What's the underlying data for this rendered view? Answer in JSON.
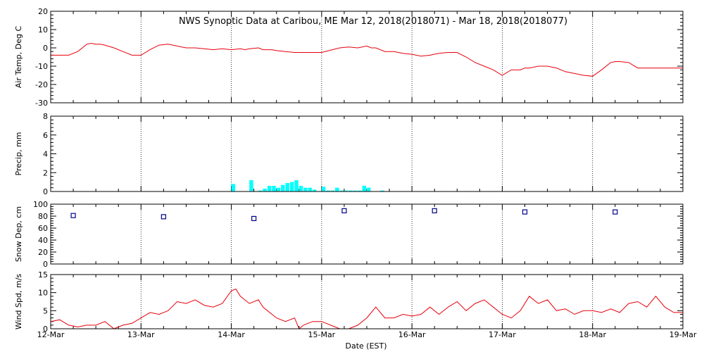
{
  "title": "NWS Synoptic Data at Caribou, ME   Mar 12, 2018(2018071) - Mar 18, 2018(2018077)",
  "xlabel": "Date (EST)",
  "x_ticks": [
    "12-Mar",
    "13-Mar",
    "14-Mar",
    "15-Mar",
    "16-Mar",
    "17-Mar",
    "18-Mar",
    "19-Mar"
  ],
  "colors": {
    "line": "#e8000b",
    "precip": "#00ffff",
    "snow": "#00008b",
    "grid": "#000000"
  },
  "chart_data": [
    {
      "type": "line",
      "ylabel": "Air Temp, Deg C",
      "ylim": [
        -30,
        20
      ],
      "yticks": [
        -30,
        -20,
        -10,
        0,
        10,
        20
      ],
      "xlim": [
        0,
        7
      ],
      "grid": true,
      "x": [
        0.0,
        0.2,
        0.3,
        0.4,
        0.45,
        0.5,
        0.55,
        0.6,
        0.7,
        0.8,
        0.9,
        1.0,
        1.1,
        1.2,
        1.3,
        1.4,
        1.45,
        1.5,
        1.6,
        1.7,
        1.8,
        1.9,
        2.0,
        2.1,
        2.15,
        2.2,
        2.3,
        2.35,
        2.4,
        2.45,
        2.5,
        2.6,
        2.7,
        2.8,
        2.9,
        3.0,
        3.2,
        3.3,
        3.4,
        3.5,
        3.55,
        3.6,
        3.7,
        3.8,
        3.9,
        4.0,
        4.1,
        4.2,
        4.3,
        4.4,
        4.5,
        4.6,
        4.7,
        4.8,
        4.9,
        5.0,
        5.1,
        5.2,
        5.25,
        5.3,
        5.4,
        5.5,
        5.6,
        5.7,
        5.8,
        5.9,
        6.0,
        6.1,
        6.2,
        6.25,
        6.3,
        6.4,
        6.5,
        6.6,
        6.7,
        6.8,
        6.9,
        7.0
      ],
      "values": [
        -4,
        -4,
        -2,
        2,
        2.5,
        2,
        2,
        1.5,
        0,
        -2,
        -4,
        -4,
        -1,
        1.5,
        2,
        1,
        0.5,
        0,
        0,
        -0.5,
        -1,
        -0.5,
        -1,
        -0.5,
        -1,
        -0.5,
        0,
        -1,
        -1,
        -1,
        -1.5,
        -2,
        -2.5,
        -2.5,
        -2.5,
        -2.5,
        0,
        0.5,
        0,
        1,
        0,
        0,
        -2,
        -2,
        -3,
        -3.5,
        -4.5,
        -4,
        -3,
        -2.5,
        -2.5,
        -5,
        -8,
        -10,
        -12,
        -15,
        -12,
        -12,
        -11,
        -11,
        -10,
        -10,
        -11,
        -13,
        -14,
        -15,
        -15.5,
        -12,
        -8,
        -7.5,
        -7.5,
        -8,
        -11,
        -11,
        -11,
        -11,
        -11,
        -11
      ]
    },
    {
      "type": "bar",
      "ylabel": "Precip, mm",
      "ylim": [
        0,
        8
      ],
      "yticks": [
        0,
        2,
        4,
        6,
        8
      ],
      "xlim": [
        0,
        7
      ],
      "grid": true,
      "x": [
        2.0,
        2.05,
        2.1,
        2.15,
        2.2,
        2.25,
        2.3,
        2.35,
        2.4,
        2.45,
        2.5,
        2.55,
        2.6,
        2.65,
        2.7,
        2.75,
        2.8,
        2.85,
        2.9,
        2.95,
        3.0,
        3.05,
        3.1,
        3.15,
        3.2,
        3.25,
        3.3,
        3.35,
        3.4,
        3.45,
        3.5,
        3.55,
        3.6,
        3.65
      ],
      "values": [
        0.8,
        0,
        0,
        0,
        1.2,
        0,
        0.1,
        0.3,
        0.6,
        0.6,
        0.4,
        0.7,
        0.9,
        1.0,
        1.2,
        0.6,
        0.4,
        0.4,
        0.2,
        0.0,
        0.5,
        0.1,
        0.1,
        0.4,
        0.1,
        0.1,
        0.1,
        0.1,
        0.1,
        0.6,
        0.4,
        0,
        0,
        0.1
      ]
    },
    {
      "type": "scatter",
      "ylabel": "Snow Dep, cm",
      "ylim": [
        0,
        100
      ],
      "yticks": [
        0,
        20,
        40,
        60,
        80,
        100
      ],
      "xlim": [
        0,
        7
      ],
      "grid": true,
      "x": [
        0.25,
        1.25,
        2.25,
        3.25,
        4.25,
        5.25,
        6.25
      ],
      "values": [
        81,
        79,
        76,
        89,
        89,
        87,
        87
      ]
    },
    {
      "type": "line",
      "ylabel": "Wind Spd, m/s",
      "ylim": [
        0,
        15
      ],
      "yticks": [
        0,
        5,
        10,
        15
      ],
      "xlim": [
        0,
        7
      ],
      "grid": true,
      "x": [
        0.0,
        0.1,
        0.2,
        0.3,
        0.4,
        0.5,
        0.6,
        0.7,
        0.8,
        0.9,
        1.0,
        1.1,
        1.2,
        1.3,
        1.4,
        1.5,
        1.6,
        1.7,
        1.8,
        1.9,
        2.0,
        2.05,
        2.1,
        2.2,
        2.3,
        2.35,
        2.4,
        2.5,
        2.6,
        2.7,
        2.75,
        2.8,
        2.9,
        3.0,
        3.1,
        3.2,
        3.3,
        3.4,
        3.5,
        3.6,
        3.7,
        3.8,
        3.9,
        4.0,
        4.1,
        4.2,
        4.3,
        4.4,
        4.5,
        4.6,
        4.7,
        4.8,
        4.9,
        5.0,
        5.1,
        5.2,
        5.3,
        5.4,
        5.5,
        5.6,
        5.7,
        5.8,
        5.9,
        6.0,
        6.1,
        6.2,
        6.3,
        6.4,
        6.5,
        6.6,
        6.7,
        6.8,
        6.9,
        7.0
      ],
      "values": [
        2,
        2.5,
        1,
        0.5,
        1,
        1,
        2,
        0,
        1,
        1.5,
        3,
        4.5,
        4,
        5,
        7.5,
        7,
        8,
        6.5,
        6,
        7,
        10.5,
        11,
        9,
        7,
        8,
        6,
        5,
        3,
        2,
        3,
        0,
        1,
        2,
        2,
        1,
        0,
        0,
        1,
        3,
        6,
        3,
        3,
        4,
        3.5,
        4,
        6,
        4,
        6,
        7.5,
        5,
        7,
        8,
        6,
        4,
        3,
        5,
        9,
        7,
        8,
        5,
        5.5,
        4,
        5,
        5,
        4.5,
        5.5,
        4.5,
        7,
        7.5,
        6,
        9,
        6,
        4.5,
        4.5
      ]
    }
  ]
}
